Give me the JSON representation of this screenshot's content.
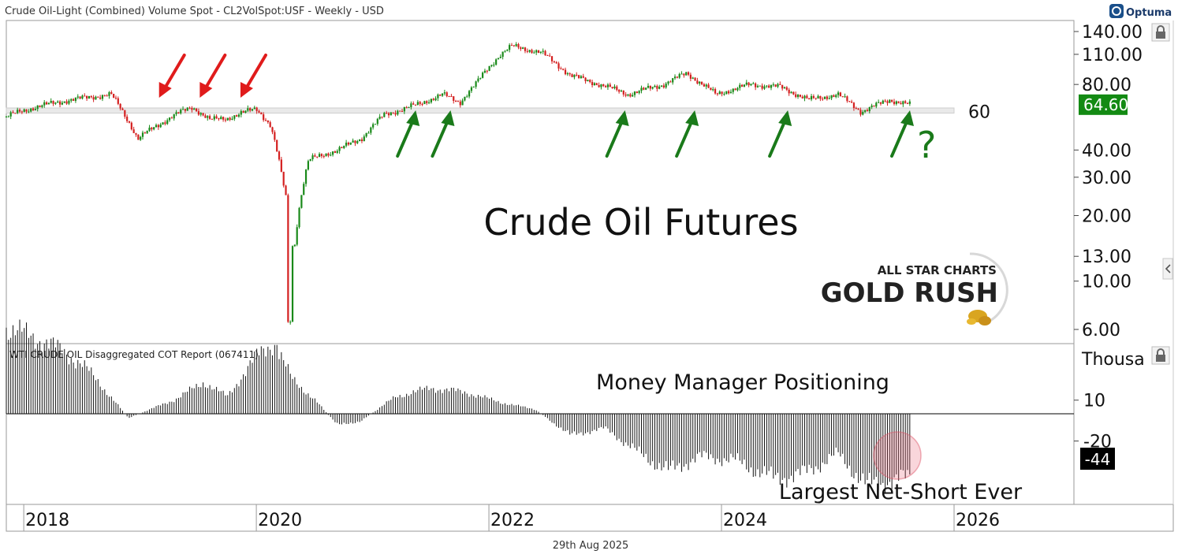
{
  "header": {
    "title": "Crude Oil-Light (Combined) Volume Spot - CL2VolSpot:USF - Weekly - USD",
    "brand": "Optuma"
  },
  "footer": {
    "date": "29th Aug 2025"
  },
  "watermark": {
    "line1": "ALL STAR CHARTS",
    "line2": "GOLD RUSH"
  },
  "colors": {
    "up": "#1a8a1a",
    "down": "#d42020",
    "accent_green": "#1a7a1a",
    "arrow_red": "#e01b1b",
    "price_box": "#138a13",
    "band": "#e8e8e8"
  },
  "chart_data": [
    {
      "type": "candlestick",
      "title": "Crude Oil Futures",
      "scale": "log",
      "y_ticks": [
        "140.00",
        "110.00",
        "80.00",
        "40.00",
        "30.00",
        "20.00",
        "13.00",
        "10.00",
        "6.00"
      ],
      "x_ticks": [
        "2018",
        "2020",
        "2022",
        "2024",
        "2026"
      ],
      "support_level": 60,
      "support_label": "60",
      "last_price": "64.60",
      "question_mark": "?",
      "x_range": [
        2017.85,
        2027.0
      ],
      "approx_weekly_close_path": [
        [
          2017.85,
          57
        ],
        [
          2018.1,
          63
        ],
        [
          2018.4,
          68
        ],
        [
          2018.75,
          72
        ],
        [
          2018.85,
          60
        ],
        [
          2018.98,
          45
        ],
        [
          2019.3,
          58
        ],
        [
          2019.45,
          63
        ],
        [
          2019.6,
          55
        ],
        [
          2019.75,
          56
        ],
        [
          2020.0,
          62
        ],
        [
          2020.12,
          52
        ],
        [
          2020.22,
          30
        ],
        [
          2020.28,
          20
        ],
        [
          2020.32,
          13
        ],
        [
          2020.45,
          36
        ],
        [
          2020.7,
          40
        ],
        [
          2020.9,
          45
        ],
        [
          2021.1,
          58
        ],
        [
          2021.4,
          65
        ],
        [
          2021.6,
          72
        ],
        [
          2021.75,
          66
        ],
        [
          2021.9,
          82
        ],
        [
          2022.1,
          110
        ],
        [
          2022.2,
          120
        ],
        [
          2022.45,
          112
        ],
        [
          2022.7,
          88
        ],
        [
          2022.95,
          80
        ],
        [
          2023.2,
          72
        ],
        [
          2023.5,
          80
        ],
        [
          2023.7,
          90
        ],
        [
          2023.95,
          72
        ],
        [
          2024.25,
          80
        ],
        [
          2024.5,
          78
        ],
        [
          2024.75,
          68
        ],
        [
          2025.0,
          72
        ],
        [
          2025.2,
          60
        ],
        [
          2025.45,
          68
        ],
        [
          2025.62,
          64.6
        ]
      ],
      "arrows_down": [
        2019.15,
        2019.5,
        2019.85
      ],
      "arrows_up": [
        2021.35,
        2021.65,
        2023.15,
        2023.75,
        2024.55,
        2025.6
      ]
    },
    {
      "type": "bar",
      "title": "Money Manager Positioning",
      "indicator_label": "WTI CRUDE OIL Disaggregated COT Report (067411)",
      "units_label": "Thousa",
      "y_ticks": [
        "10",
        "-20"
      ],
      "last_value": "-44",
      "annotation": "Largest Net-Short Ever",
      "approx_net_position_path": [
        [
          2017.85,
          60
        ],
        [
          2018.2,
          50
        ],
        [
          2018.5,
          35
        ],
        [
          2018.75,
          12
        ],
        [
          2018.9,
          -3
        ],
        [
          2019.3,
          10
        ],
        [
          2019.55,
          22
        ],
        [
          2019.75,
          12
        ],
        [
          2020.0,
          40
        ],
        [
          2020.15,
          50
        ],
        [
          2020.3,
          25
        ],
        [
          2020.5,
          10
        ],
        [
          2020.7,
          -8
        ],
        [
          2020.9,
          -5
        ],
        [
          2021.2,
          12
        ],
        [
          2021.5,
          18
        ],
        [
          2021.8,
          15
        ],
        [
          2022.1,
          8
        ],
        [
          2022.4,
          3
        ],
        [
          2022.7,
          -15
        ],
        [
          2023.0,
          -10
        ],
        [
          2023.3,
          -28
        ],
        [
          2023.55,
          -40
        ],
        [
          2023.8,
          -30
        ],
        [
          2024.1,
          -32
        ],
        [
          2024.45,
          -45
        ],
        [
          2024.7,
          -42
        ],
        [
          2025.0,
          -28
        ],
        [
          2025.25,
          -50
        ],
        [
          2025.62,
          -44
        ]
      ]
    }
  ]
}
